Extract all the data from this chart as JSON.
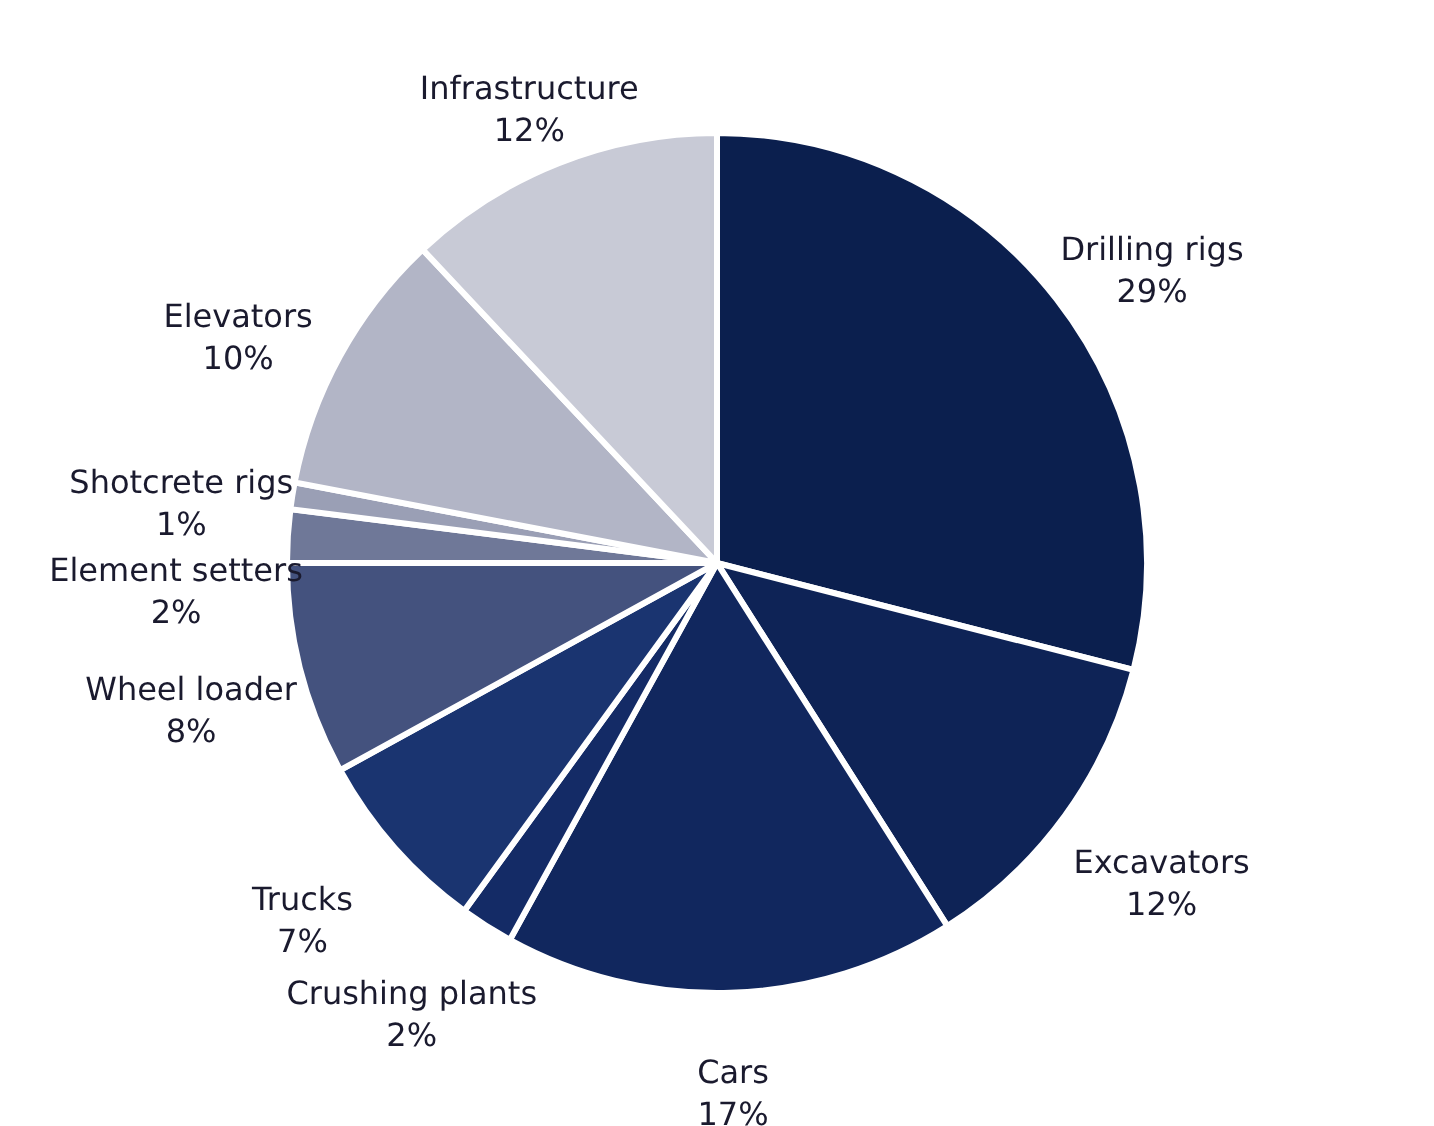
{
  "chart_data": {
    "type": "pie",
    "categories": [
      "Drilling rigs",
      "Excavators",
      "Cars",
      "Crushing plants",
      "Trucks",
      "Wheel loader",
      "Element setters",
      "Shotcrete rigs",
      "Elevators",
      "Infrastructure"
    ],
    "values": [
      29,
      12,
      17,
      2,
      7,
      8,
      2,
      1,
      10,
      12
    ],
    "value_labels": [
      "29%",
      "12%",
      "17%",
      "2%",
      "7%",
      "8%",
      "2%",
      "1%",
      "10%",
      "12%"
    ],
    "colors": [
      "#0b1f4e",
      "#0e2356",
      "#11275e",
      "#142b66",
      "#1a3470",
      "#44527e",
      "#6f7898",
      "#9a9fb5",
      "#b2b5c6",
      "#c8cad6"
    ]
  }
}
